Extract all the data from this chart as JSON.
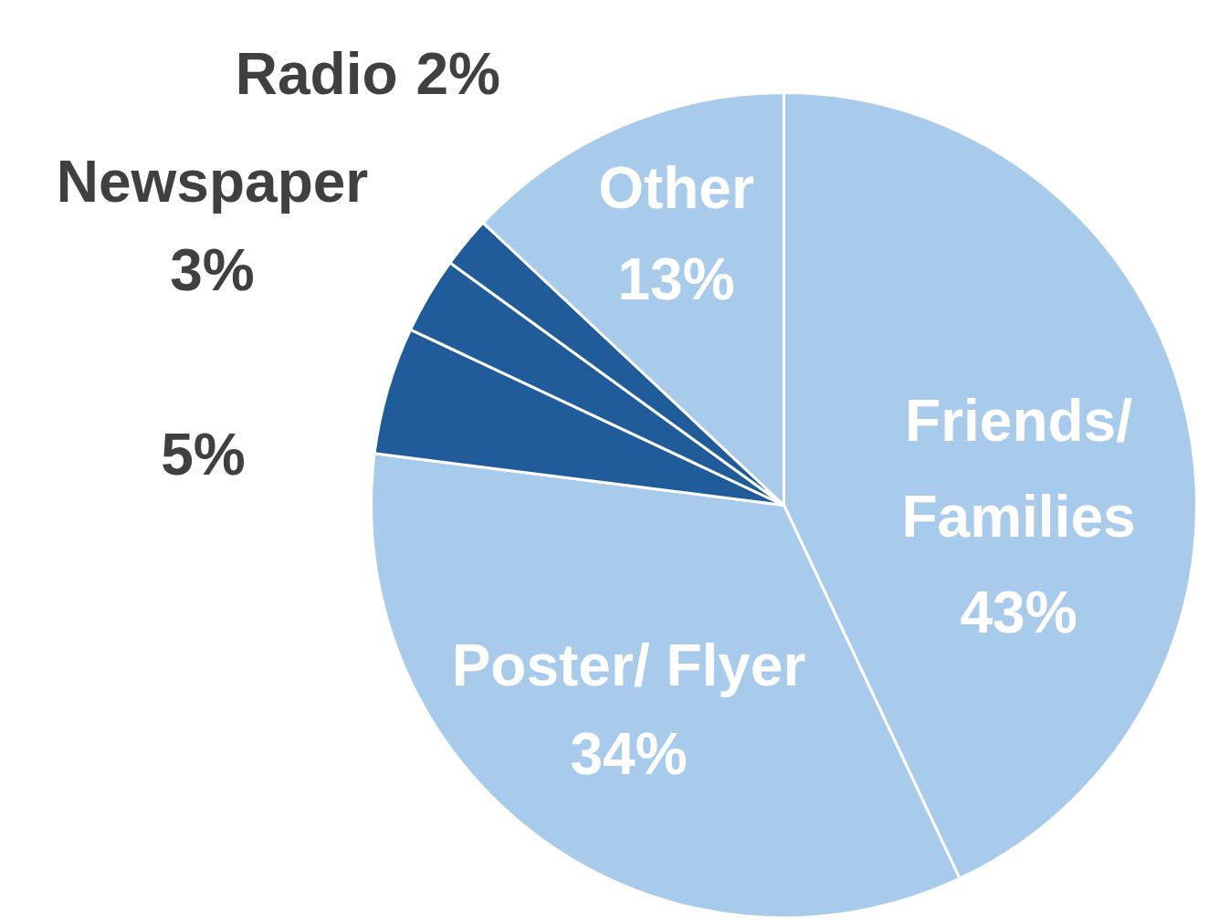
{
  "chart_data": {
    "type": "pie",
    "categories": [
      "Friends/ Families",
      "Poster/ Flyer",
      null,
      "Newspaper",
      "Radio",
      "Other"
    ],
    "values": [
      43,
      34,
      5,
      3,
      2,
      13
    ],
    "colors": [
      "#a9cbeb",
      "#a9cbeb",
      "#1f5c99",
      "#1f5c99",
      "#1f5c99",
      "#a9cbeb"
    ],
    "value_labels": [
      "43%",
      "34%",
      "5%",
      "3%",
      "2%",
      "13%"
    ]
  }
}
